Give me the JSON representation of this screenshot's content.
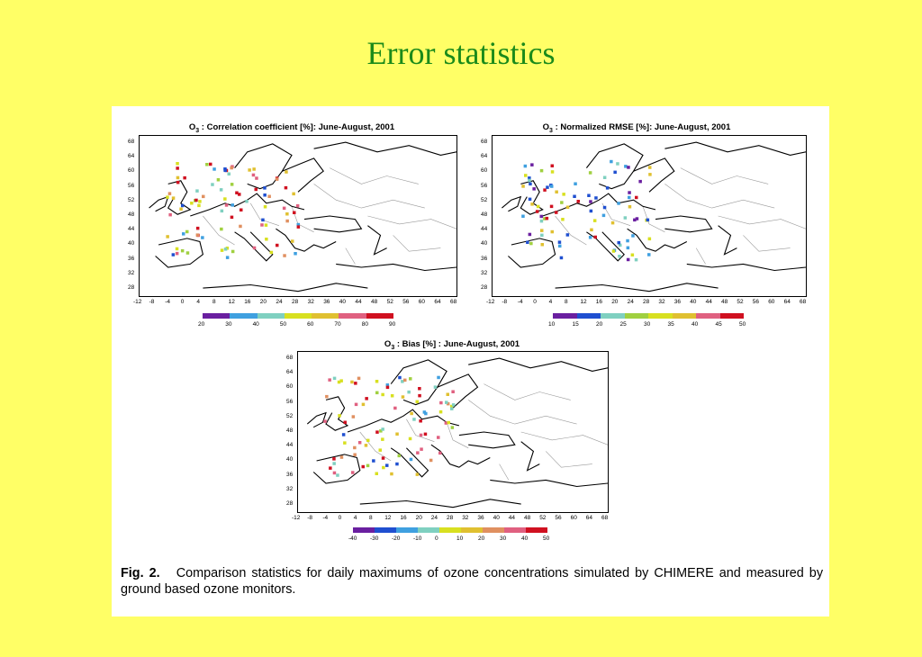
{
  "slide": {
    "title": "Error statistics"
  },
  "figure": {
    "maps": [
      {
        "id": "correlation",
        "title_prefix": "O",
        "title_sub": "3",
        "title_rest": " : Correlation coefficient [%]: June-August, 2001",
        "lat_labels": [
          "68",
          "64",
          "60",
          "56",
          "52",
          "48",
          "44",
          "40",
          "36",
          "32",
          "28"
        ],
        "lon_labels": [
          "-12",
          "-8",
          "-4",
          "0",
          "4",
          "8",
          "12",
          "16",
          "20",
          "24",
          "28",
          "32",
          "36",
          "40",
          "44",
          "48",
          "52",
          "56",
          "60",
          "64",
          "68"
        ],
        "colorbar_labels": [
          "20",
          "30",
          "40",
          "50",
          "60",
          "70",
          "80",
          "90"
        ]
      },
      {
        "id": "rmse",
        "title_prefix": "O",
        "title_sub": "3",
        "title_rest": " : Normalized RMSE [%]: June-August, 2001",
        "lat_labels": [
          "68",
          "64",
          "60",
          "56",
          "52",
          "48",
          "44",
          "40",
          "36",
          "32",
          "28"
        ],
        "lon_labels": [
          "-12",
          "-8",
          "-4",
          "0",
          "4",
          "8",
          "12",
          "16",
          "20",
          "24",
          "28",
          "32",
          "36",
          "40",
          "44",
          "48",
          "52",
          "56",
          "60",
          "64",
          "68"
        ],
        "colorbar_labels": [
          "10",
          "15",
          "20",
          "25",
          "30",
          "35",
          "40",
          "45",
          "50"
        ]
      },
      {
        "id": "bias",
        "title_prefix": "O",
        "title_sub": "3",
        "title_rest": " : Bias [%] : June-August, 2001",
        "lat_labels": [
          "68",
          "64",
          "60",
          "56",
          "52",
          "48",
          "44",
          "40",
          "36",
          "32",
          "28"
        ],
        "lon_labels": [
          "-12",
          "-8",
          "-4",
          "0",
          "4",
          "8",
          "12",
          "16",
          "20",
          "24",
          "28",
          "32",
          "36",
          "40",
          "44",
          "48",
          "52",
          "56",
          "60",
          "64",
          "68"
        ],
        "colorbar_labels": [
          "-40",
          "-30",
          "-20",
          "-10",
          "0",
          "10",
          "20",
          "30",
          "40",
          "50"
        ]
      }
    ],
    "colorbar_colors": [
      "#6a1fa0",
      "#1f4fd0",
      "#3fa0e0",
      "#7fd0c0",
      "#a0d040",
      "#d8e020",
      "#e0c030",
      "#e09060",
      "#e06080",
      "#d01020"
    ],
    "caption": {
      "label": "Fig. 2.",
      "text": "Comparison statistics for daily maximums of ozone concentrations simulated by CHIMERE and measured by ground based ozone monitors."
    }
  }
}
